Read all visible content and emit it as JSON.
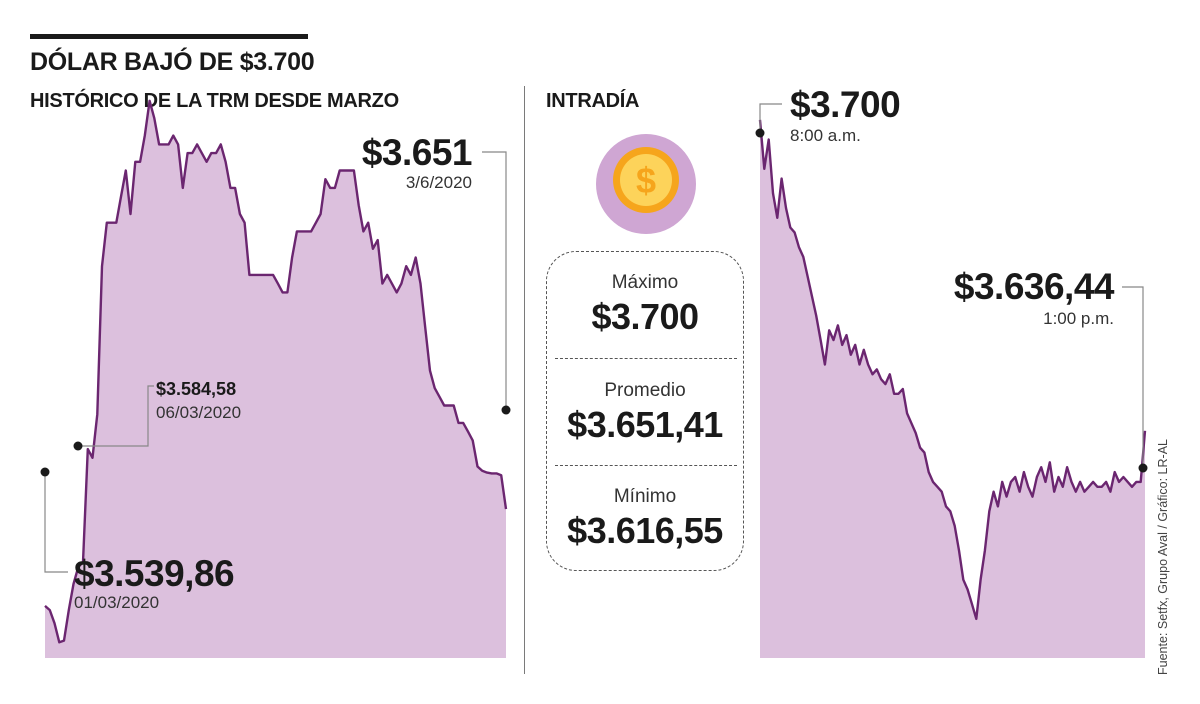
{
  "header": {
    "title": "DÓLAR BAJÓ DE $3.700",
    "left_section": "HISTÓRICO DE LA TRM DESDE MARZO",
    "middle_section": "INTRADÍA"
  },
  "colors": {
    "line": "#6b2670",
    "fill": "#dcc0dd",
    "coin_bg": "#cfa6d3",
    "coin_outer": "#f6a51c",
    "coin_inner": "#fdd35a",
    "text": "#1a1a1a"
  },
  "icons": {
    "coin": "dollar-coin-icon"
  },
  "stats": {
    "max_label": "Máximo",
    "max_value": "$3.700",
    "avg_label": "Promedio",
    "avg_value": "$3.651,41",
    "min_label": "Mínimo",
    "min_value": "$3.616,55"
  },
  "annotations": {
    "hist_start_value": "$3.539,86",
    "hist_start_date": "01/03/2020",
    "hist_jump_value": "$3.584,58",
    "hist_jump_date": "06/03/2020",
    "hist_end_value": "$3.651",
    "hist_end_date": "3/6/2020",
    "intra_open_value": "$3.700",
    "intra_open_time": "8:00 a.m.",
    "intra_close_value": "$3.636,44",
    "intra_close_time": "1:00 p.m."
  },
  "source": "Fuente: Setfx, Grupo Aval / Gráfico: LR-AL",
  "chart_data": [
    {
      "type": "area",
      "ylim": [
        3480,
        4160
      ],
      "start_label": "01/03/2020",
      "end_label": "3/6/2020",
      "values": [
        3539.86,
        3535,
        3520,
        3498,
        3500,
        3535,
        3565,
        3584.58,
        3590,
        3720,
        3710,
        3760,
        3930,
        3980,
        3980,
        3980,
        4010,
        4040,
        3990,
        4050,
        4050,
        4080,
        4120,
        4100,
        4070,
        4070,
        4070,
        4080,
        4070,
        4020,
        4060,
        4060,
        4070,
        4060,
        4050,
        4060,
        4060,
        4070,
        4050,
        4020,
        4020,
        3990,
        3980,
        3920,
        3920,
        3920,
        3920,
        3920,
        3920,
        3910,
        3900,
        3900,
        3940,
        3970,
        3970,
        3970,
        3970,
        3980,
        3990,
        4030,
        4020,
        4020,
        4040,
        4040,
        4040,
        4040,
        4000,
        3970,
        3980,
        3950,
        3960,
        3910,
        3920,
        3910,
        3900,
        3910,
        3930,
        3920,
        3940,
        3910,
        3860,
        3810,
        3790,
        3780,
        3770,
        3770,
        3770,
        3750,
        3750,
        3740,
        3730,
        3700,
        3695,
        3693,
        3692,
        3692,
        3690,
        3651
      ]
    },
    {
      "type": "area",
      "ylim": [
        3590,
        3710
      ],
      "start_label": "8:00 a.m.",
      "end_label": "1:00 p.m.",
      "values": [
        3700,
        3690,
        3696,
        3685,
        3680,
        3688,
        3682,
        3678,
        3677,
        3674,
        3672,
        3668,
        3664,
        3660,
        3655,
        3650,
        3657,
        3655,
        3658,
        3654,
        3656,
        3652,
        3654,
        3650,
        3653,
        3650,
        3648,
        3649,
        3647,
        3646,
        3648,
        3644,
        3644,
        3645,
        3640,
        3638,
        3636,
        3633,
        3632,
        3628,
        3626,
        3625,
        3624,
        3621,
        3620,
        3617,
        3612,
        3606,
        3604,
        3601,
        3598,
        3606,
        3612,
        3620,
        3624,
        3621,
        3626,
        3623,
        3626,
        3627,
        3624,
        3628,
        3625,
        3623,
        3627,
        3629,
        3626,
        3630,
        3624,
        3627,
        3625,
        3629,
        3626,
        3624,
        3626,
        3624,
        3625,
        3626,
        3625,
        3625,
        3626,
        3624,
        3628,
        3626,
        3627,
        3626,
        3625,
        3626,
        3626,
        3636.44
      ]
    }
  ]
}
